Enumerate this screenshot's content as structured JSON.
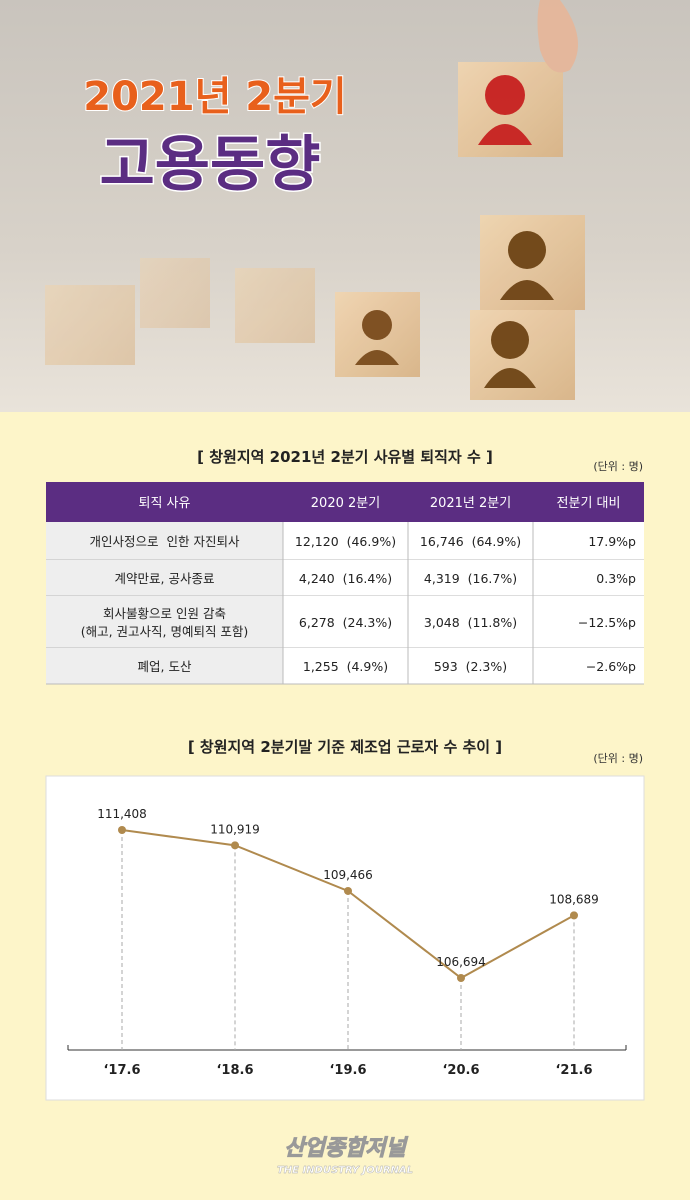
{
  "header": {
    "subtitle": "2021년 2분기",
    "title": "고용동향"
  },
  "table": {
    "title": "[ 창원지역 2021년 2분기 사유별 퇴직자 수 ]",
    "unit": "(단위 : 명)",
    "columns": [
      "퇴직 사유",
      "2020 2분기",
      "2021년 2분기",
      "전분기 대비"
    ],
    "rows": [
      [
        "개인사정으로  인한 자진퇴사",
        "12,120  (46.9%)",
        "16,746  (64.9%)",
        "17.9%p"
      ],
      [
        "계약만료, 공사종료",
        "4,240  (16.4%)",
        "4,319  (16.7%)",
        "0.3%p"
      ],
      [
        "회사불황으로 인원 감축\n(해고, 권고사직, 명예퇴직 포함)",
        "6,278  (24.3%)",
        "3,048  (11.8%)",
        "−12.5%p"
      ],
      [
        "폐업, 도산",
        "1,255  (4.9%)",
        "593  (2.3%)",
        "−2.6%p"
      ]
    ]
  },
  "chart_data": {
    "type": "line",
    "title": "[ 창원지역 2분기말 기준 제조업 근로자 수 추이 ]",
    "unit": "(단위 : 명)",
    "categories": [
      "‘17.6",
      "‘18.6",
      "‘19.6",
      "‘20.6",
      "‘21.6"
    ],
    "values": [
      111408,
      110919,
      109466,
      106694,
      108689
    ],
    "value_labels": [
      "111,408",
      "110,919",
      "109,466",
      "106,694",
      "108,689"
    ],
    "color": "#b08a4e"
  },
  "footer": {
    "logo": "산업종합저널",
    "logo_sub": "THE INDUSTRY JOURNAL"
  }
}
